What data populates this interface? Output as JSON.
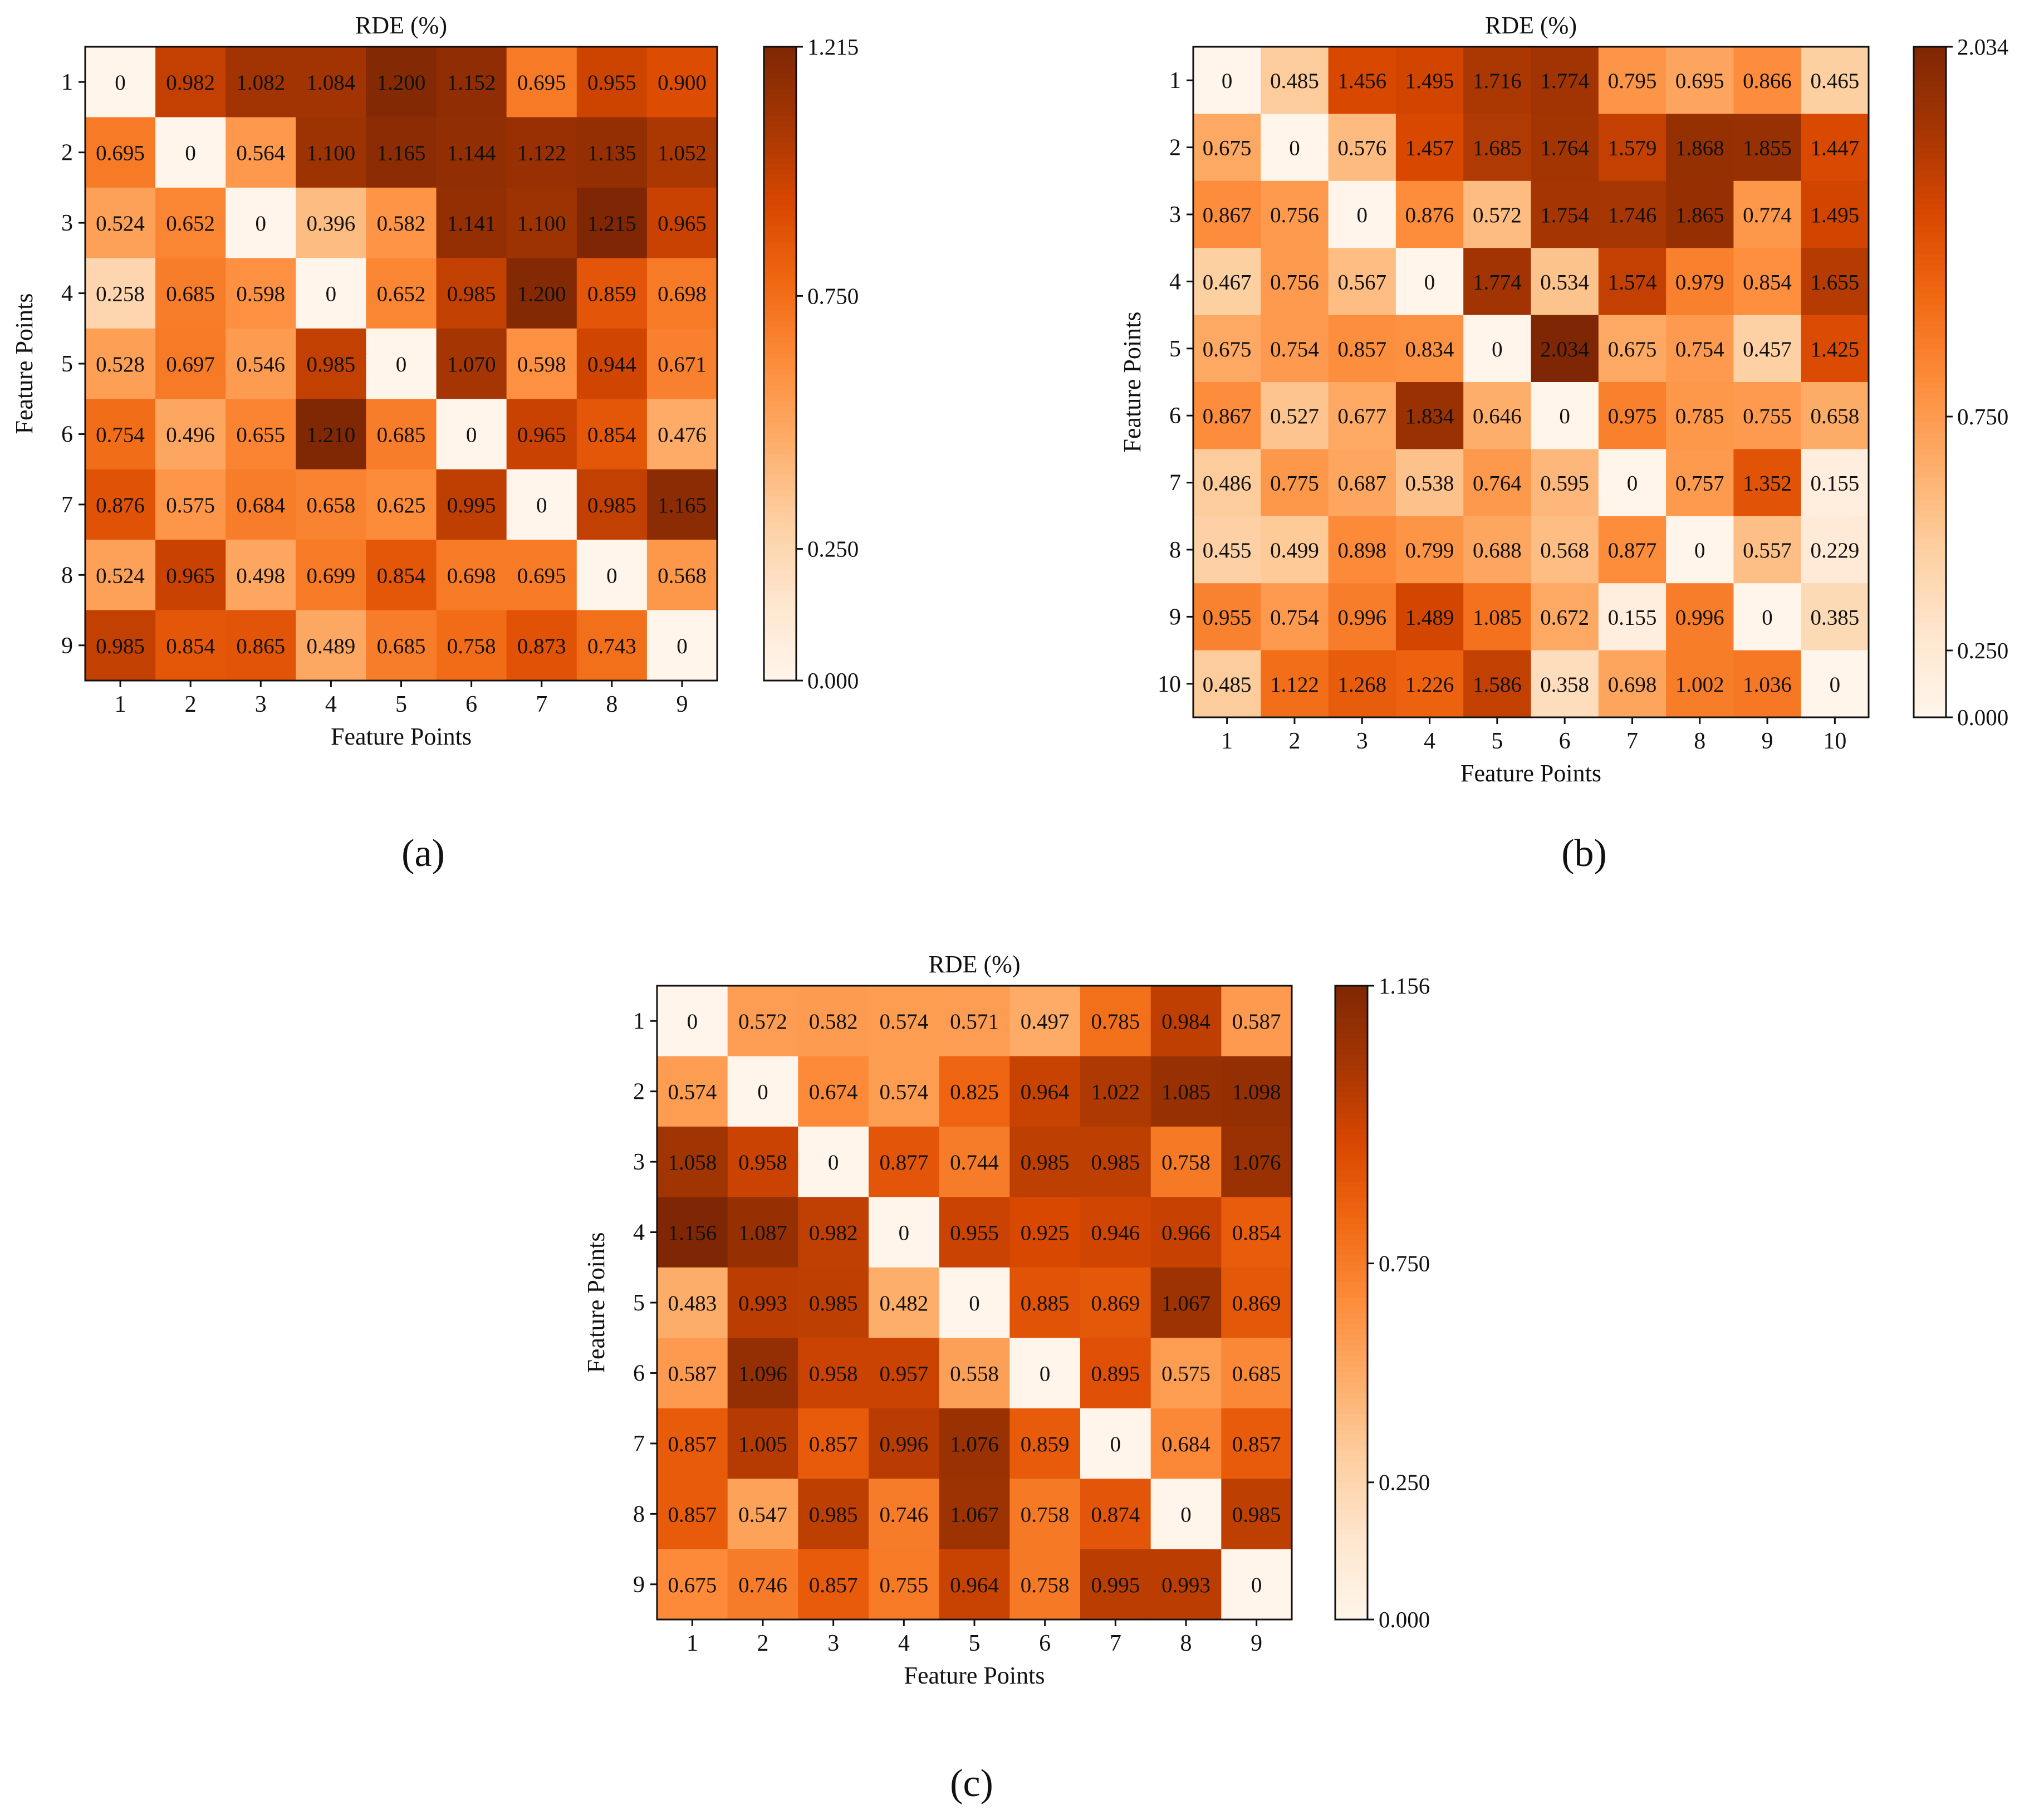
{
  "figure": {
    "panel_labels": [
      "(a)",
      "(b)",
      "(c)"
    ]
  },
  "colormap": {
    "name": "Oranges",
    "stops": [
      "#fff5eb",
      "#fee6ce",
      "#fdd0a2",
      "#fdae6b",
      "#fd8d3c",
      "#f16913",
      "#d94801",
      "#a63603",
      "#7f2704"
    ]
  },
  "chart_data": [
    {
      "type": "heatmap",
      "panel": "(a)",
      "title": "RDE (%)",
      "xlabel": "Feature Points",
      "ylabel": "Feature Points",
      "x_categories": [
        "1",
        "2",
        "3",
        "4",
        "5",
        "6",
        "7",
        "8",
        "9"
      ],
      "y_categories": [
        "1",
        "2",
        "3",
        "4",
        "5",
        "6",
        "7",
        "8",
        "9"
      ],
      "values": [
        [
          "0",
          "0.982",
          "1.082",
          "1.084",
          "1.200",
          "1.152",
          "0.695",
          "0.955",
          "0.900"
        ],
        [
          "0.695",
          "0",
          "0.564",
          "1.100",
          "1.165",
          "1.144",
          "1.122",
          "1.135",
          "1.052"
        ],
        [
          "0.524",
          "0.652",
          "0",
          "0.396",
          "0.582",
          "1.141",
          "1.100",
          "1.215",
          "0.965"
        ],
        [
          "0.258",
          "0.685",
          "0.598",
          "0",
          "0.652",
          "0.985",
          "1.200",
          "0.859",
          "0.698"
        ],
        [
          "0.528",
          "0.697",
          "0.546",
          "0.985",
          "0",
          "1.070",
          "0.598",
          "0.944",
          "0.671"
        ],
        [
          "0.754",
          "0.496",
          "0.655",
          "1.210",
          "0.685",
          "0",
          "0.965",
          "0.854",
          "0.476"
        ],
        [
          "0.876",
          "0.575",
          "0.684",
          "0.658",
          "0.625",
          "0.995",
          "0",
          "0.985",
          "1.165"
        ],
        [
          "0.524",
          "0.965",
          "0.498",
          "0.699",
          "0.854",
          "0.698",
          "0.695",
          "0",
          "0.568"
        ],
        [
          "0.985",
          "0.854",
          "0.865",
          "0.489",
          "0.685",
          "0.758",
          "0.873",
          "0.743",
          "0"
        ]
      ],
      "colorbar": {
        "range": [
          0.0,
          1.215
        ],
        "ticks": [
          {
            "value": 1.215,
            "label": "1.215"
          },
          {
            "value": 0.75,
            "label": "0.750"
          },
          {
            "value": 0.25,
            "label": "0.250"
          },
          {
            "value": 0.0,
            "label": "0.000"
          }
        ]
      }
    },
    {
      "type": "heatmap",
      "panel": "(b)",
      "title": "RDE (%)",
      "xlabel": "Feature Points",
      "ylabel": "Feature Points",
      "x_categories": [
        "1",
        "2",
        "3",
        "4",
        "5",
        "6",
        "7",
        "8",
        "9",
        "10"
      ],
      "y_categories": [
        "1",
        "2",
        "3",
        "4",
        "5",
        "6",
        "7",
        "8",
        "9",
        "10"
      ],
      "values": [
        [
          "0",
          "0.485",
          "1.456",
          "1.495",
          "1.716",
          "1.774",
          "0.795",
          "0.695",
          "0.866",
          "0.465"
        ],
        [
          "0.675",
          "0",
          "0.576",
          "1.457",
          "1.685",
          "1.764",
          "1.579",
          "1.868",
          "1.855",
          "1.447"
        ],
        [
          "0.867",
          "0.756",
          "0",
          "0.876",
          "0.572",
          "1.754",
          "1.746",
          "1.865",
          "0.774",
          "1.495"
        ],
        [
          "0.467",
          "0.756",
          "0.567",
          "0",
          "1.774",
          "0.534",
          "1.574",
          "0.979",
          "0.854",
          "1.655"
        ],
        [
          "0.675",
          "0.754",
          "0.857",
          "0.834",
          "0",
          "2.034",
          "0.675",
          "0.754",
          "0.457",
          "1.425"
        ],
        [
          "0.867",
          "0.527",
          "0.677",
          "1.834",
          "0.646",
          "0",
          "0.975",
          "0.785",
          "0.755",
          "0.658"
        ],
        [
          "0.486",
          "0.775",
          "0.687",
          "0.538",
          "0.764",
          "0.595",
          "0",
          "0.757",
          "1.352",
          "0.155"
        ],
        [
          "0.455",
          "0.499",
          "0.898",
          "0.799",
          "0.688",
          "0.568",
          "0.877",
          "0",
          "0.557",
          "0.229"
        ],
        [
          "0.955",
          "0.754",
          "0.996",
          "1.489",
          "1.085",
          "0.672",
          "0.155",
          "0.996",
          "0",
          "0.385"
        ],
        [
          "0.485",
          "1.122",
          "1.268",
          "1.226",
          "1.586",
          "0.358",
          "0.698",
          "1.002",
          "1.036",
          "0"
        ]
      ],
      "colorbar": {
        "range": [
          0.0,
          2.034
        ],
        "ticks": [
          {
            "value": 2.034,
            "label": "2.034"
          },
          {
            "value": 0.75,
            "label": "0.750"
          },
          {
            "value": 0.25,
            "label": "0.250"
          },
          {
            "value": 0.0,
            "label": "0.000"
          }
        ]
      }
    },
    {
      "type": "heatmap",
      "panel": "(c)",
      "title": "RDE (%)",
      "xlabel": "Feature Points",
      "ylabel": "Feature Points",
      "x_categories": [
        "1",
        "2",
        "3",
        "4",
        "5",
        "6",
        "7",
        "8",
        "9"
      ],
      "y_categories": [
        "1",
        "2",
        "3",
        "4",
        "5",
        "6",
        "7",
        "8",
        "9"
      ],
      "values": [
        [
          "0",
          "0.572",
          "0.582",
          "0.574",
          "0.571",
          "0.497",
          "0.785",
          "0.984",
          "0.587"
        ],
        [
          "0.574",
          "0",
          "0.674",
          "0.574",
          "0.825",
          "0.964",
          "1.022",
          "1.085",
          "1.098"
        ],
        [
          "1.058",
          "0.958",
          "0",
          "0.877",
          "0.744",
          "0.985",
          "0.985",
          "0.758",
          "1.076"
        ],
        [
          "1.156",
          "1.087",
          "0.982",
          "0",
          "0.955",
          "0.925",
          "0.946",
          "0.966",
          "0.854"
        ],
        [
          "0.483",
          "0.993",
          "0.985",
          "0.482",
          "0",
          "0.885",
          "0.869",
          "1.067",
          "0.869"
        ],
        [
          "0.587",
          "1.096",
          "0.958",
          "0.957",
          "0.558",
          "0",
          "0.895",
          "0.575",
          "0.685"
        ],
        [
          "0.857",
          "1.005",
          "0.857",
          "0.996",
          "1.076",
          "0.859",
          "0",
          "0.684",
          "0.857"
        ],
        [
          "0.857",
          "0.547",
          "0.985",
          "0.746",
          "1.067",
          "0.758",
          "0.874",
          "0",
          "0.985"
        ],
        [
          "0.675",
          "0.746",
          "0.857",
          "0.755",
          "0.964",
          "0.758",
          "0.995",
          "0.993",
          "0"
        ]
      ],
      "colorbar": {
        "range": [
          0.0,
          1.156
        ],
        "ticks": [
          {
            "value": 1.156,
            "label": "1.156"
          },
          {
            "value": 0.75,
            "label": "0.750"
          },
          {
            "value": 0.25,
            "label": "0.250"
          },
          {
            "value": 0.0,
            "label": "0.000"
          }
        ]
      }
    }
  ]
}
